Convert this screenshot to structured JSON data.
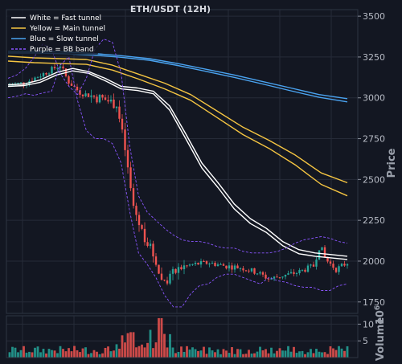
{
  "chart_data": {
    "type": "line",
    "title": "ETH/USDT (12H)",
    "colors": {
      "background": "#131722",
      "grid": "#262b38",
      "up": "#26a69a",
      "down": "#ef5350",
      "fast": "#ffffff",
      "main": "#f5c542",
      "slow": "#4aa3f0",
      "bb": "#8a55ff"
    },
    "price_axis": {
      "label": "Price",
      "ylim": [
        1680,
        3540
      ],
      "ticks": [
        1750,
        2000,
        2250,
        2500,
        2750,
        3000,
        3250,
        3500
      ],
      "tick_labels": [
        "1750",
        "2000",
        "2250",
        "2500",
        "2750",
        "3000",
        "3250",
        "3500"
      ]
    },
    "volume_axis": {
      "label": "Volume",
      "exponent": "10",
      "exponent_power": "6",
      "ylim": [
        0,
        12.5
      ],
      "ticks": [
        5,
        10
      ],
      "tick_labels": [
        "5",
        "10"
      ]
    },
    "legend": {
      "position": "top-left",
      "entries": [
        {
          "label": "White = Fast tunnel",
          "color": "#ffffff",
          "style": "solid"
        },
        {
          "label": "Yellow = Main tunnel",
          "color": "#f5c542",
          "style": "solid"
        },
        {
          "label": "Blue = Slow tunnel",
          "color": "#4aa3f0",
          "style": "solid"
        },
        {
          "label": "Purple = BB band",
          "color": "#8a55ff",
          "style": "dashed"
        }
      ]
    },
    "grid": true,
    "series": [
      {
        "name": "White = Fast tunnel",
        "values": [
          3080,
          3085,
          3110,
          3155,
          3180,
          3160,
          3120,
          3070,
          3060,
          3040,
          2950,
          2780,
          2600,
          2480,
          2350,
          2260,
          2200,
          2120,
          2070,
          2050,
          2040,
          2030
        ]
      },
      {
        "name": "White = Fast tunnel",
        "values": [
          3070,
          3075,
          3095,
          3140,
          3165,
          3150,
          3105,
          3055,
          3045,
          3025,
          2925,
          2750,
          2570,
          2450,
          2320,
          2230,
          2175,
          2095,
          2045,
          2030,
          2020,
          2010
        ]
      },
      {
        "name": "Yellow = Main tunnel",
        "values": [
          3255,
          3245,
          3240,
          3235,
          3200,
          3145,
          3090,
          3020,
          2920,
          2820,
          2740,
          2650,
          2540,
          2480
        ]
      },
      {
        "name": "Yellow = Main tunnel",
        "values": [
          3225,
          3215,
          3210,
          3205,
          3170,
          3115,
          3055,
          2985,
          2880,
          2775,
          2690,
          2590,
          2470,
          2400
        ]
      },
      {
        "name": "Blue = Slow tunnel",
        "values": [
          3285,
          3285,
          3280,
          3272,
          3258,
          3240,
          3210,
          3175,
          3140,
          3100,
          3060,
          3020,
          2995
        ]
      },
      {
        "name": "Blue = Slow tunnel",
        "values": [
          3275,
          3275,
          3270,
          3262,
          3248,
          3230,
          3198,
          3162,
          3125,
          3085,
          3043,
          3003,
          2975
        ]
      },
      {
        "name": "Purple = BB band",
        "values": [
          3000,
          3010,
          3025,
          3015,
          3030,
          3040,
          3200,
          3250,
          2980,
          2800,
          2750,
          2750,
          2720,
          2600,
          2300,
          2050,
          1980,
          1900,
          1790,
          1720,
          1720,
          1800,
          1850,
          1860,
          1900,
          1920,
          1920,
          1900,
          1880,
          1860,
          1900,
          1880,
          1870,
          1850,
          1840,
          1840,
          1820,
          1820,
          1850,
          1860
        ]
      },
      {
        "name": "Purple = BB band",
        "values": [
          3120,
          3140,
          3180,
          3250,
          3330,
          3300,
          3150,
          3070,
          3020,
          3120,
          3300,
          3360,
          3340,
          3150,
          2700,
          2400,
          2300,
          2250,
          2200,
          2160,
          2130,
          2120,
          2120,
          2110,
          2090,
          2080,
          2080,
          2060,
          2050,
          2050,
          2050,
          2060,
          2080,
          2110,
          2130,
          2140,
          2150,
          2140,
          2120,
          2110
        ]
      }
    ]
  }
}
